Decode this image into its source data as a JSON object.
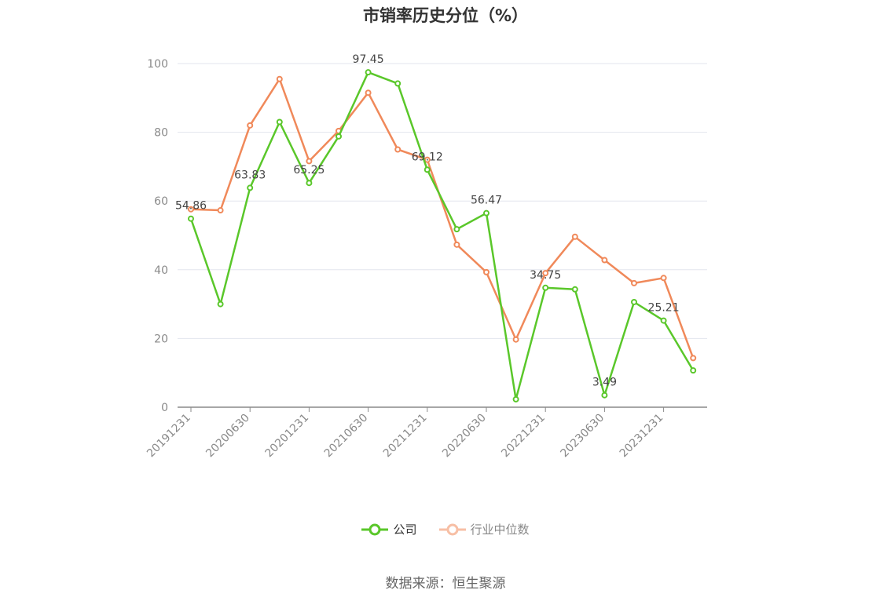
{
  "source_text": "数据来源：恒生聚源",
  "chart_data": {
    "type": "line",
    "title": "市销率历史分位（%）",
    "xlabel": "",
    "ylabel": "",
    "ylim": [
      0,
      100
    ],
    "yticks": [
      0,
      20,
      40,
      60,
      80,
      100
    ],
    "grid": true,
    "legend_position": "bottom",
    "x": [
      "20191231",
      "20200331",
      "20200630",
      "20200930",
      "20201231",
      "20210331",
      "20210630",
      "20210930",
      "20211231",
      "20220331",
      "20220630",
      "20220930",
      "20221231",
      "20230331",
      "20230630",
      "20230930",
      "20231231",
      "20240331"
    ],
    "xtick_labels": [
      "20191231",
      "20200630",
      "20201231",
      "20210630",
      "20211231",
      "20220630",
      "20221231",
      "20230630",
      "20231231"
    ],
    "series": [
      {
        "name": "公司",
        "color": "#5ac72a",
        "values": [
          54.86,
          30.0,
          63.83,
          83.0,
          65.25,
          78.8,
          97.45,
          94.2,
          69.12,
          51.8,
          56.47,
          2.3,
          34.75,
          34.3,
          3.49,
          30.6,
          25.21,
          10.7
        ],
        "data_labels": [
          {
            "index": 0,
            "text": "54.86"
          },
          {
            "index": 2,
            "text": "63.83"
          },
          {
            "index": 4,
            "text": "65.25"
          },
          {
            "index": 6,
            "text": "97.45"
          },
          {
            "index": 8,
            "text": "69.12"
          },
          {
            "index": 10,
            "text": "56.47"
          },
          {
            "index": 12,
            "text": "34.75"
          },
          {
            "index": 14,
            "text": "3.49"
          },
          {
            "index": 16,
            "text": "25.21"
          }
        ]
      },
      {
        "name": "行业中位数",
        "color": "#f0895a",
        "values": [
          57.6,
          57.3,
          82.0,
          95.5,
          71.6,
          80.4,
          91.5,
          75.0,
          72.0,
          47.3,
          39.3,
          19.7,
          39.0,
          49.6,
          42.8,
          36.1,
          37.6,
          14.3
        ]
      }
    ]
  }
}
